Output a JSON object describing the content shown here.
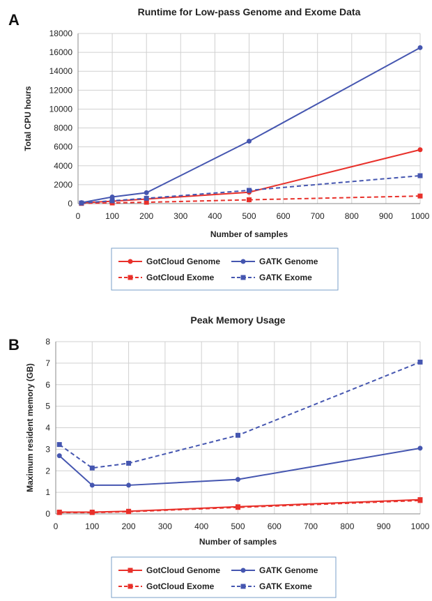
{
  "panels": {
    "a": {
      "letter": "A"
    },
    "b": {
      "letter": "B"
    }
  },
  "colors": {
    "gotcloud": "#e8302a",
    "gatk": "#4556b0",
    "legend_border": "#7a9fc8"
  },
  "chart_data": [
    {
      "type": "line",
      "title": "Runtime for Low-pass Genome and Exome Data",
      "xlabel": "Number of samples",
      "ylabel": "Total CPU hours",
      "xlim": [
        0,
        1000
      ],
      "ylim": [
        0,
        18000
      ],
      "xticks": [
        0,
        100,
        200,
        300,
        400,
        500,
        600,
        700,
        800,
        900,
        1000
      ],
      "yticks": [
        0,
        2000,
        4000,
        6000,
        8000,
        10000,
        12000,
        14000,
        16000,
        18000
      ],
      "grid": true,
      "legend_position": "bottom",
      "series": [
        {
          "name": "GotCloud Genome",
          "color": "#e8302a",
          "dashed": false,
          "marker": "circle",
          "x": [
            10,
            100,
            200,
            500,
            1000
          ],
          "y": [
            80,
            250,
            480,
            1200,
            5700
          ]
        },
        {
          "name": "GATK Genome",
          "color": "#4556b0",
          "dashed": false,
          "marker": "circle",
          "x": [
            10,
            100,
            200,
            500,
            1000
          ],
          "y": [
            100,
            700,
            1150,
            6600,
            16500
          ]
        },
        {
          "name": "GotCloud Exome",
          "color": "#e8302a",
          "dashed": true,
          "marker": "square",
          "x": [
            10,
            100,
            200,
            500,
            1000
          ],
          "y": [
            20,
            70,
            140,
            400,
            800
          ]
        },
        {
          "name": "GATK Exome",
          "color": "#4556b0",
          "dashed": true,
          "marker": "square",
          "x": [
            10,
            100,
            200,
            500,
            1000
          ],
          "y": [
            60,
            300,
            560,
            1400,
            2950
          ]
        }
      ]
    },
    {
      "type": "line",
      "title": "Peak Memory Usage",
      "xlabel": "Number of samples",
      "ylabel": "Maximum resident memory (GB)",
      "xlim": [
        0,
        1000
      ],
      "ylim": [
        0,
        8
      ],
      "xticks": [
        0,
        100,
        200,
        300,
        400,
        500,
        600,
        700,
        800,
        900,
        1000
      ],
      "yticks": [
        0,
        1,
        2,
        3,
        4,
        5,
        6,
        7,
        8
      ],
      "grid": true,
      "legend_position": "bottom",
      "series": [
        {
          "name": "GotCloud Genome",
          "color": "#e8302a",
          "dashed": false,
          "marker": "square",
          "x": [
            10,
            100,
            200,
            500,
            1000
          ],
          "y": [
            0.08,
            0.08,
            0.12,
            0.33,
            0.66
          ]
        },
        {
          "name": "GATK Genome",
          "color": "#4556b0",
          "dashed": false,
          "marker": "circle",
          "x": [
            10,
            100,
            200,
            500,
            1000
          ],
          "y": [
            2.7,
            1.33,
            1.33,
            1.6,
            3.05
          ]
        },
        {
          "name": "GotCloud Exome",
          "color": "#e8302a",
          "dashed": true,
          "marker": "square",
          "x": [
            10,
            100,
            200,
            500,
            1000
          ],
          "y": [
            0.06,
            0.06,
            0.1,
            0.3,
            0.62
          ]
        },
        {
          "name": "GATK Exome",
          "color": "#4556b0",
          "dashed": true,
          "marker": "square",
          "x": [
            10,
            100,
            200,
            500,
            1000
          ],
          "y": [
            3.22,
            2.13,
            2.35,
            3.65,
            7.05
          ]
        }
      ]
    }
  ]
}
